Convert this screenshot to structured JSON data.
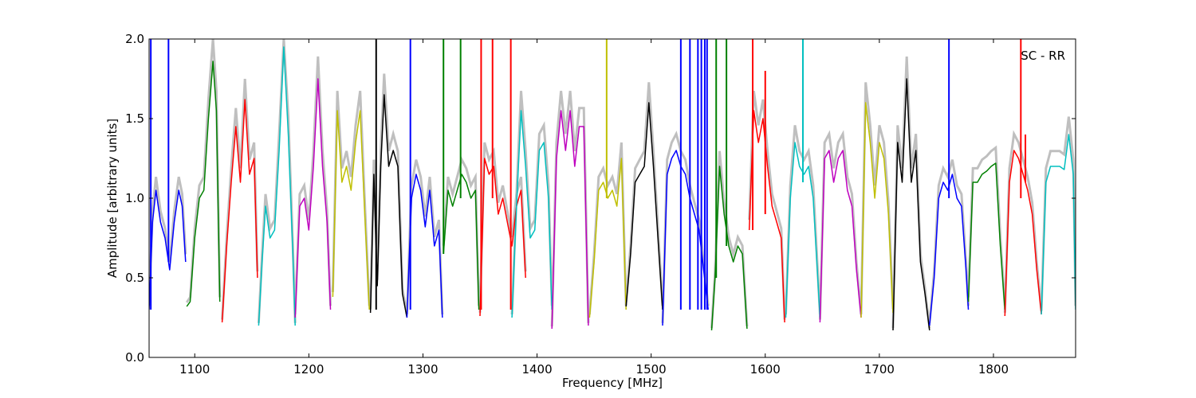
{
  "chart_data": {
    "type": "line",
    "title": "",
    "xlabel": "Frequency [MHz]",
    "ylabel": "Amplitude [arbitrary units]",
    "xlim": [
      1060,
      1872
    ],
    "ylim": [
      0.0,
      2.0
    ],
    "grid": false,
    "legend": "none",
    "annotation": "SC - RR",
    "x_ticks": [
      1100,
      1200,
      1300,
      1400,
      1500,
      1600,
      1700,
      1800
    ],
    "y_ticks": [
      0.0,
      0.5,
      1.0,
      1.5,
      2.0
    ],
    "x_tick_labels": [
      "1100",
      "1200",
      "1300",
      "1400",
      "1500",
      "1600",
      "1700",
      "1800"
    ],
    "y_tick_labels": [
      "0.0",
      "0.5",
      "1.0",
      "1.5",
      "2.0"
    ],
    "colors": {
      "background_series": "#bfbfbf",
      "cycle": [
        "#0000ff",
        "#008000",
        "#ff0000",
        "#00bfbf",
        "#bf00bf",
        "#bfbf00",
        "#000000"
      ]
    },
    "series": [
      {
        "color": "#0000ff",
        "x": [
          1060,
          1063,
          1066,
          1070,
          1074,
          1078,
          1082,
          1086,
          1089,
          1092
        ],
        "y": [
          0.3,
          0.85,
          1.05,
          0.85,
          0.75,
          0.55,
          0.85,
          1.05,
          0.95,
          0.6
        ]
      },
      {
        "color": "#008000",
        "x": [
          1093,
          1096,
          1100,
          1104,
          1108,
          1112,
          1116,
          1119,
          1122
        ],
        "y": [
          0.32,
          0.35,
          0.75,
          1.0,
          1.05,
          1.5,
          1.86,
          1.55,
          0.35
        ]
      },
      {
        "color": "#ff0000",
        "x": [
          1124,
          1128,
          1132,
          1136,
          1140,
          1144,
          1148,
          1152,
          1155
        ],
        "y": [
          0.22,
          0.7,
          1.1,
          1.45,
          1.1,
          1.62,
          1.15,
          1.25,
          0.5
        ]
      },
      {
        "color": "#00bfbf",
        "x": [
          1156,
          1159,
          1162,
          1166,
          1170,
          1174,
          1178,
          1182,
          1186,
          1188
        ],
        "y": [
          0.2,
          0.6,
          0.95,
          0.75,
          0.8,
          1.3,
          1.95,
          1.4,
          0.65,
          0.2
        ]
      },
      {
        "color": "#bf00bf",
        "x": [
          1188,
          1192,
          1196,
          1200,
          1204,
          1208,
          1212,
          1216,
          1219
        ],
        "y": [
          0.25,
          0.95,
          1.0,
          0.8,
          1.2,
          1.75,
          1.2,
          0.85,
          0.3
        ]
      },
      {
        "color": "#bfbf00",
        "x": [
          1221,
          1225,
          1229,
          1233,
          1237,
          1241,
          1245,
          1249,
          1253
        ],
        "y": [
          0.38,
          1.55,
          1.1,
          1.2,
          1.05,
          1.35,
          1.55,
          0.9,
          0.3
        ]
      },
      {
        "color": "#000000",
        "x": [
          1254,
          1257,
          1260,
          1263,
          1266,
          1270,
          1274,
          1278,
          1282,
          1286
        ],
        "y": [
          0.28,
          1.15,
          0.45,
          1.2,
          1.65,
          1.2,
          1.3,
          1.2,
          0.4,
          0.25
        ]
      },
      {
        "color": "#0000ff",
        "x": [
          1286,
          1290,
          1294,
          1298,
          1302,
          1306,
          1310,
          1314,
          1317
        ],
        "y": [
          0.25,
          1.0,
          1.15,
          1.05,
          0.82,
          1.05,
          0.7,
          0.8,
          0.25
        ]
      },
      {
        "color": "#008000",
        "x": [
          1318,
          1322,
          1326,
          1330,
          1334,
          1338,
          1342,
          1346,
          1349
        ],
        "y": [
          0.65,
          1.05,
          0.95,
          1.05,
          1.15,
          1.1,
          1.0,
          1.05,
          0.3
        ]
      },
      {
        "color": "#ff0000",
        "x": [
          1350,
          1354,
          1358,
          1362,
          1366,
          1370,
          1374,
          1378,
          1382,
          1386,
          1390
        ],
        "y": [
          0.26,
          1.25,
          1.15,
          1.2,
          0.9,
          1.0,
          0.85,
          0.7,
          0.95,
          1.05,
          0.5
        ]
      },
      {
        "color": "#00bfbf",
        "x": [
          1378,
          1382,
          1386,
          1390,
          1394,
          1398,
          1402,
          1406,
          1410,
          1413
        ],
        "y": [
          0.25,
          0.95,
          1.55,
          1.2,
          0.75,
          0.8,
          1.3,
          1.35,
          1.0,
          0.3
        ]
      },
      {
        "color": "#bf00bf",
        "x": [
          1413,
          1417,
          1421,
          1425,
          1429,
          1433,
          1437,
          1441,
          1445
        ],
        "y": [
          0.18,
          1.25,
          1.55,
          1.3,
          1.55,
          1.2,
          1.45,
          1.45,
          0.2
        ]
      },
      {
        "color": "#bfbf00",
        "x": [
          1446,
          1450,
          1454,
          1458,
          1462,
          1466,
          1470,
          1474,
          1478
        ],
        "y": [
          0.25,
          0.6,
          1.05,
          1.1,
          1.0,
          1.05,
          0.95,
          1.25,
          0.3
        ]
      },
      {
        "color": "#000000",
        "x": [
          1478,
          1482,
          1486,
          1490,
          1494,
          1498,
          1502,
          1506,
          1510
        ],
        "y": [
          0.32,
          0.65,
          1.1,
          1.15,
          1.2,
          1.6,
          1.2,
          0.75,
          0.3
        ]
      },
      {
        "color": "#0000ff",
        "x": [
          1510,
          1514,
          1518,
          1522,
          1526,
          1530,
          1534,
          1538,
          1542,
          1546,
          1550
        ],
        "y": [
          0.2,
          1.15,
          1.25,
          1.3,
          1.2,
          1.15,
          1.0,
          0.9,
          0.8,
          0.55,
          0.3
        ]
      },
      {
        "color": "#008000",
        "x": [
          1553,
          1556,
          1560,
          1564,
          1568,
          1572,
          1576,
          1580,
          1584
        ],
        "y": [
          0.17,
          0.5,
          1.2,
          0.9,
          0.7,
          0.6,
          0.7,
          0.65,
          0.18
        ]
      },
      {
        "color": "#ff0000",
        "x": [
          1586,
          1590,
          1594,
          1598,
          1602,
          1606,
          1610,
          1614,
          1617
        ],
        "y": [
          0.8,
          1.55,
          1.35,
          1.5,
          1.2,
          0.95,
          0.85,
          0.75,
          0.22
        ]
      },
      {
        "color": "#00bfbf",
        "x": [
          1618,
          1622,
          1626,
          1630,
          1634,
          1638,
          1642,
          1646,
          1648
        ],
        "y": [
          0.25,
          1.0,
          1.35,
          1.2,
          1.15,
          1.2,
          1.0,
          0.5,
          0.25
        ]
      },
      {
        "color": "#bf00bf",
        "x": [
          1648,
          1652,
          1656,
          1660,
          1664,
          1668,
          1672,
          1676,
          1680,
          1684
        ],
        "y": [
          0.22,
          1.25,
          1.3,
          1.1,
          1.25,
          1.3,
          1.05,
          0.95,
          0.55,
          0.25
        ]
      },
      {
        "color": "#bfbf00",
        "x": [
          1684,
          1688,
          1692,
          1696,
          1700,
          1704,
          1708,
          1712
        ],
        "y": [
          0.25,
          1.6,
          1.35,
          1.0,
          1.35,
          1.25,
          0.9,
          0.28
        ]
      },
      {
        "color": "#000000",
        "x": [
          1712,
          1716,
          1720,
          1724,
          1728,
          1732,
          1736,
          1740,
          1744
        ],
        "y": [
          0.17,
          1.35,
          1.1,
          1.75,
          1.1,
          1.3,
          0.6,
          0.4,
          0.17
        ]
      },
      {
        "color": "#0000ff",
        "x": [
          1744,
          1748,
          1752,
          1756,
          1760,
          1764,
          1768,
          1772,
          1776,
          1778
        ],
        "y": [
          0.2,
          0.5,
          1.0,
          1.1,
          1.05,
          1.15,
          1.0,
          0.95,
          0.55,
          0.3
        ]
      },
      {
        "color": "#008000",
        "x": [
          1778,
          1782,
          1786,
          1790,
          1794,
          1798,
          1802,
          1806,
          1810
        ],
        "y": [
          0.35,
          1.1,
          1.1,
          1.15,
          1.17,
          1.2,
          1.22,
          0.7,
          0.3
        ]
      },
      {
        "color": "#ff0000",
        "x": [
          1810,
          1814,
          1818,
          1822,
          1826,
          1830,
          1834,
          1838,
          1842
        ],
        "y": [
          0.26,
          1.1,
          1.3,
          1.25,
          1.15,
          1.05,
          0.9,
          0.55,
          0.27
        ]
      },
      {
        "color": "#00bfbf",
        "x": [
          1842,
          1846,
          1850,
          1854,
          1858,
          1862,
          1866,
          1870,
          1872
        ],
        "y": [
          0.27,
          1.1,
          1.2,
          1.2,
          1.2,
          1.18,
          1.4,
          1.15,
          0.3
        ]
      }
    ],
    "spikes": [
      {
        "color": "#0000ff",
        "x": 1061.5,
        "from": 0.3,
        "to": 2.0
      },
      {
        "color": "#0000ff",
        "x": 1077,
        "from": 0.6,
        "to": 2.0
      },
      {
        "color": "#000000",
        "x": 1259,
        "from": 0.3,
        "to": 2.0
      },
      {
        "color": "#0000ff",
        "x": 1289,
        "from": 0.3,
        "to": 2.0
      },
      {
        "color": "#008000",
        "x": 1318,
        "from": 0.65,
        "to": 2.0
      },
      {
        "color": "#008000",
        "x": 1333,
        "from": 1.0,
        "to": 2.0
      },
      {
        "color": "#ff0000",
        "x": 1351,
        "from": 0.3,
        "to": 2.0
      },
      {
        "color": "#ff0000",
        "x": 1361,
        "from": 1.0,
        "to": 2.0
      },
      {
        "color": "#ff0000",
        "x": 1377,
        "from": 0.3,
        "to": 2.0
      },
      {
        "color": "#bfbf00",
        "x": 1461,
        "from": 1.0,
        "to": 2.0
      },
      {
        "color": "#0000ff",
        "x": 1526,
        "from": 0.3,
        "to": 2.0
      },
      {
        "color": "#0000ff",
        "x": 1534,
        "from": 0.3,
        "to": 2.0
      },
      {
        "color": "#0000ff",
        "x": 1541,
        "from": 0.3,
        "to": 2.0
      },
      {
        "color": "#0000ff",
        "x": 1544,
        "from": 0.3,
        "to": 2.0
      },
      {
        "color": "#0000ff",
        "x": 1547,
        "from": 0.3,
        "to": 2.0
      },
      {
        "color": "#0000ff",
        "x": 1549,
        "from": 0.3,
        "to": 2.0
      },
      {
        "color": "#008000",
        "x": 1557,
        "from": 0.5,
        "to": 2.0
      },
      {
        "color": "#008000",
        "x": 1566,
        "from": 0.7,
        "to": 2.0
      },
      {
        "color": "#ff0000",
        "x": 1589,
        "from": 0.8,
        "to": 2.0
      },
      {
        "color": "#ff0000",
        "x": 1600,
        "from": 0.9,
        "to": 1.8
      },
      {
        "color": "#00bfbf",
        "x": 1633,
        "from": 1.1,
        "to": 2.0
      },
      {
        "color": "#0000ff",
        "x": 1761,
        "from": 1.0,
        "to": 2.0
      },
      {
        "color": "#ff0000",
        "x": 1824,
        "from": 1.0,
        "to": 2.0
      },
      {
        "color": "#ff0000",
        "x": 1828,
        "from": 1.1,
        "to": 1.4
      }
    ]
  }
}
